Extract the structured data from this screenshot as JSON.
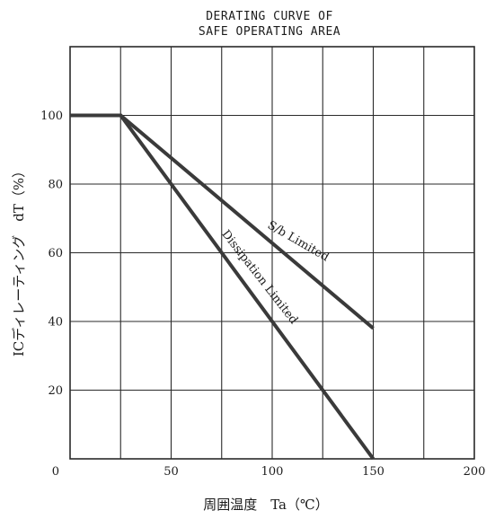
{
  "chart_data": {
    "type": "line",
    "title": "DERATING CURVE OF",
    "subtitle": "SAFE OPERATING AREA",
    "xlabel": "周囲温度　Ta（℃）",
    "ylabel": "ICディレーティング　dT（%）",
    "x_ticks": [
      "0",
      "50",
      "100",
      "150",
      "200"
    ],
    "y_ticks": [
      "20",
      "40",
      "60",
      "80",
      "100"
    ],
    "xlim": [
      0,
      200
    ],
    "ylim": [
      0,
      120
    ],
    "grid": true,
    "series": [
      {
        "name": "S/b Limited",
        "x": [
          0,
          25,
          150
        ],
        "y": [
          100,
          100,
          38
        ]
      },
      {
        "name": "Dissipation Limited",
        "x": [
          0,
          25,
          150
        ],
        "y": [
          100,
          100,
          0
        ]
      }
    ],
    "annotations": [
      "S/b Limited",
      "Dissipation Limited"
    ],
    "colors": {
      "line": "#3a3a3a",
      "grid": "#2a2a2a",
      "text": "#1c1c1c"
    }
  }
}
